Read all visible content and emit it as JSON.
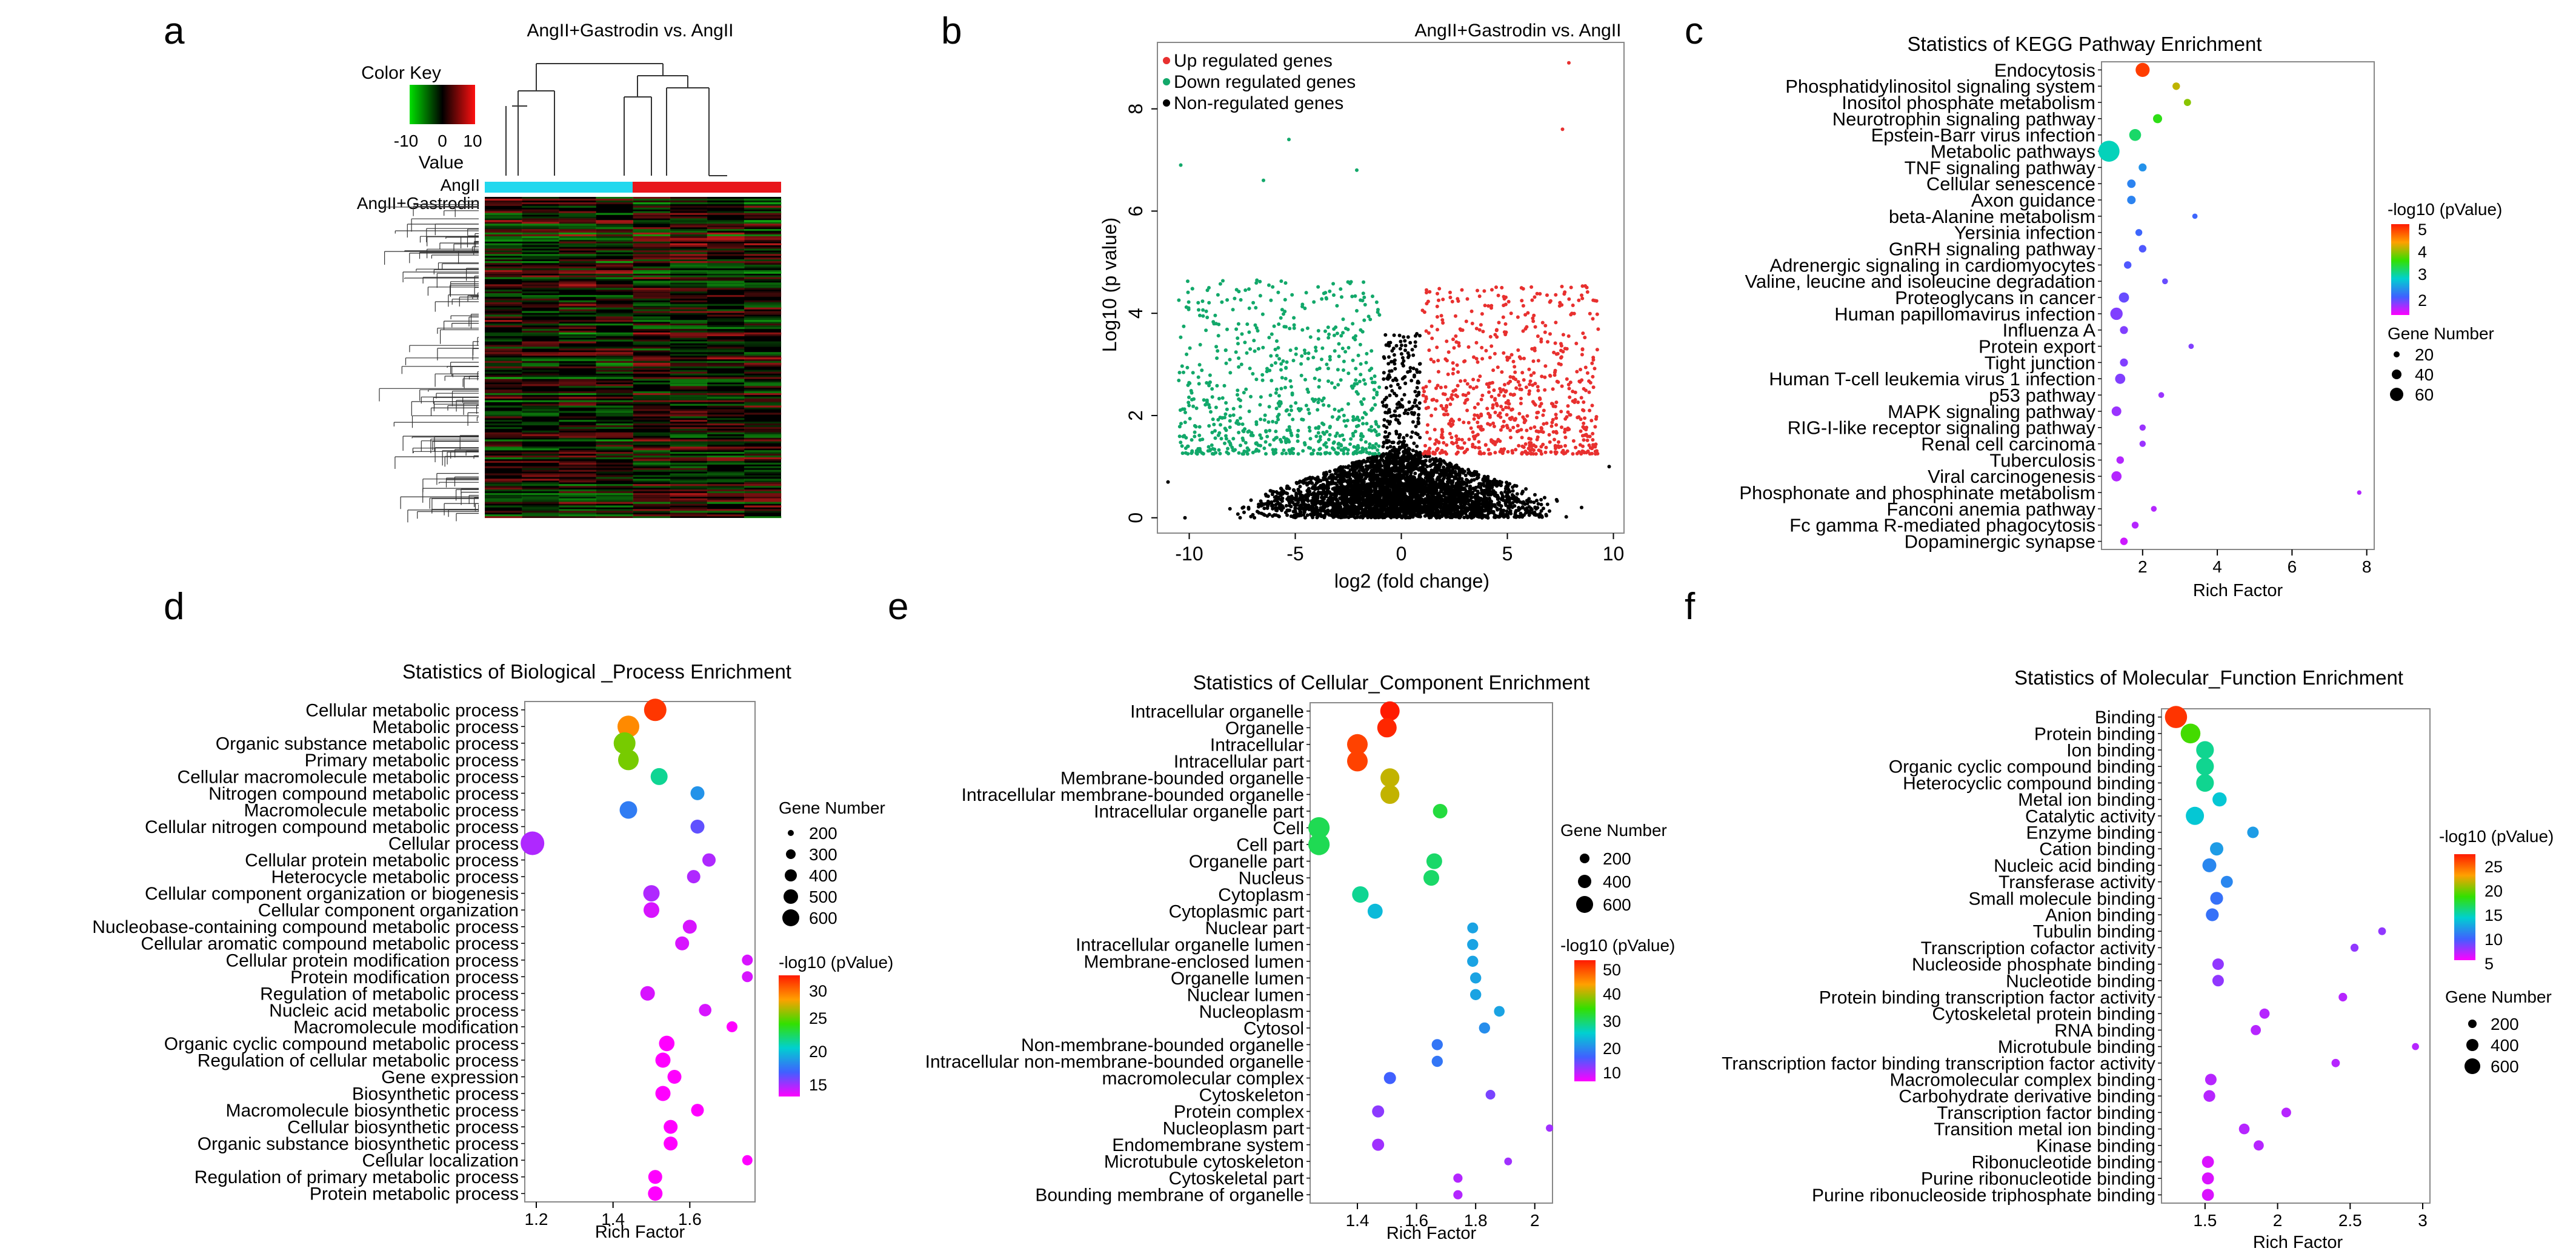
{
  "panels": {
    "a": "a",
    "b": "b",
    "c": "c",
    "d": "d",
    "e": "e",
    "f": "f"
  },
  "heatmap": {
    "title": "AngII+Gastrodin vs. AngII",
    "color_key": "Color Key",
    "value_label": "Value",
    "key_ticks": [
      "-10",
      "0",
      "10"
    ],
    "group1": "AngII",
    "group2": "AngII+Gastrodin",
    "group1_color": "#22d8ee",
    "group2_color": "#e8161b"
  },
  "scale_labels": {
    "pvalue": "-log10 (pValue)",
    "pvalue_kegg": "-log10 (pValue)",
    "gene_number": "Gene Number"
  },
  "chart_data": [
    {
      "panel": "b",
      "type": "scatter",
      "title": "AngII+Gastrodin vs. AngII",
      "xlabel": "log2 (fold change)",
      "ylabel": "Log10 (p value)",
      "xlim": [
        -11.5,
        10.5
      ],
      "ylim": [
        -0.3,
        9.3
      ],
      "xticks": [
        -10,
        -5,
        0,
        5,
        10
      ],
      "yticks": [
        0,
        2,
        4,
        6,
        8
      ],
      "legend": [
        "Up regulated genes",
        "Down regulated genes",
        "Non-regulated genes"
      ],
      "colors": {
        "up": "#e8302f",
        "down": "#12a86a",
        "non": "#000000"
      },
      "outliers": [
        {
          "x": 7.9,
          "y": 8.9,
          "g": "up"
        },
        {
          "x": 7.6,
          "y": 7.6,
          "g": "up"
        },
        {
          "x": -10.4,
          "y": 6.9,
          "g": "down"
        },
        {
          "x": -5.3,
          "y": 7.4,
          "g": "down"
        },
        {
          "x": -2.1,
          "y": 6.8,
          "g": "down"
        },
        {
          "x": -6.5,
          "y": 6.6,
          "g": "down"
        },
        {
          "x": -11,
          "y": 0.7,
          "g": "non"
        },
        {
          "x": -10.2,
          "y": 0,
          "g": "non"
        },
        {
          "x": 9.8,
          "y": 1,
          "g": "non"
        },
        {
          "x": 8.5,
          "y": 0.2,
          "g": "non"
        }
      ]
    },
    {
      "panel": "c",
      "type": "scatter",
      "title": "Statistics of KEGG Pathway Enrichment",
      "xlabel": "Rich Factor",
      "xlim": [
        0.9,
        8.2
      ],
      "xticks": [
        2,
        4,
        6,
        8
      ],
      "color_legend": [
        "5",
        "4",
        "3",
        "2"
      ],
      "size_legend": [
        "20",
        "40",
        "60"
      ],
      "categories": [
        "Endocytosis",
        "Phosphatidylinositol signaling system",
        "Inositol phosphate metabolism",
        "Neurotrophin signaling pathway",
        "Epstein-Barr virus infection",
        "Metabolic pathways",
        "TNF signaling pathway",
        "Cellular senescence",
        "Axon guidance",
        "beta-Alanine metabolism",
        "Yersinia infection",
        "GnRH signaling pathway",
        "Adrenergic signaling in cardiomyocytes",
        "Valine, leucine and isoleucine degradation",
        "Proteoglycans in cancer",
        "Human papillomavirus infection",
        "Influenza A",
        "Protein export",
        "Tight junction",
        "Human T-cell leukemia virus 1 infection",
        "p53 pathway",
        "MAPK signaling pathway",
        "RIG-I-like receptor signaling pathway",
        "Renal cell carcinoma",
        "Tuberculosis",
        "Viral carcinogenesis",
        "Phosphonate and phosphinate metabolism",
        "Fanconi anemia pathway",
        "Fc gamma R-mediated phagocytosis",
        "Dopaminergic synapse"
      ],
      "x": [
        2.0,
        2.9,
        3.2,
        2.4,
        1.8,
        1.1,
        2.0,
        1.7,
        1.7,
        3.4,
        1.9,
        2.0,
        1.6,
        2.6,
        1.5,
        1.3,
        1.5,
        3.3,
        1.5,
        1.4,
        2.5,
        1.3,
        2.0,
        2.0,
        1.4,
        1.3,
        7.8,
        2.3,
        1.8,
        1.5
      ],
      "values": [
        5.2,
        4.4,
        4.2,
        3.8,
        3.5,
        3.2,
        2.7,
        2.6,
        2.6,
        2.4,
        2.4,
        2.3,
        2.3,
        2.2,
        2.2,
        2.1,
        2.1,
        2.1,
        2.1,
        2.1,
        2.0,
        2.0,
        2.0,
        2.0,
        1.9,
        1.9,
        1.9,
        1.9,
        1.9,
        1.8
      ],
      "gene_number": [
        48,
        18,
        16,
        25,
        38,
        80,
        20,
        22,
        22,
        8,
        15,
        18,
        18,
        10,
        30,
        40,
        20,
        8,
        20,
        30,
        10,
        28,
        12,
        12,
        18,
        30,
        4,
        10,
        15,
        18
      ]
    },
    {
      "panel": "d",
      "type": "scatter",
      "title": "Statistics of Biological _Process Enrichment",
      "xlabel": "Rich Factor",
      "xlim": [
        1.17,
        1.77
      ],
      "xticks": [
        1.2,
        1.4,
        1.6
      ],
      "color_legend": [
        "30",
        "25",
        "20",
        "15"
      ],
      "size_legend": [
        "200",
        "300",
        "400",
        "500",
        "600"
      ],
      "categories": [
        "Cellular metabolic process",
        "Metabolic process",
        "Organic substance metabolic process",
        "Primary metabolic process",
        "Cellular macromolecule metabolic process",
        "Nitrogen compound metabolic process",
        "Macromolecule metabolic process",
        "Cellular nitrogen compound metabolic process",
        "Cellular process",
        "Cellular protein metabolic process",
        "Heterocycle metabolic process",
        "Cellular component organization or biogenesis",
        "Cellular component organization",
        "Nucleobase-containing compound metabolic process",
        "Cellular aromatic compound metabolic process",
        "Cellular protein modification process",
        "Protein modification process",
        "Regulation of metabolic process",
        "Nucleic acid metabolic process",
        "Macromolecule modification",
        "Organic cyclic compound metabolic process",
        "Regulation of cellular metabolic process",
        "Gene expression",
        "Biosynthetic process",
        "Macromolecule biosynthetic process",
        "Cellular biosynthetic process",
        "Organic substance biosynthetic process",
        "Cellular localization",
        "Regulation of primary metabolic process",
        "Protein metabolic process"
      ],
      "x": [
        1.51,
        1.44,
        1.43,
        1.44,
        1.52,
        1.62,
        1.44,
        1.62,
        1.19,
        1.65,
        1.61,
        1.5,
        1.5,
        1.6,
        1.58,
        1.75,
        1.75,
        1.49,
        1.64,
        1.71,
        1.54,
        1.53,
        1.56,
        1.53,
        1.62,
        1.55,
        1.55,
        1.75,
        1.51,
        1.51
      ],
      "values": [
        34,
        31,
        27,
        27,
        22,
        18,
        17,
        15,
        13,
        13,
        13,
        13,
        12,
        12,
        12,
        12,
        12,
        12,
        12,
        11,
        11,
        11,
        11,
        11,
        11,
        11,
        11,
        11,
        11,
        11
      ],
      "gene_number": [
        580,
        560,
        560,
        520,
        400,
        300,
        420,
        300,
        620,
        280,
        280,
        380,
        360,
        300,
        300,
        200,
        200,
        320,
        250,
        200,
        350,
        340,
        300,
        340,
        260,
        300,
        300,
        180,
        300,
        320
      ]
    },
    {
      "panel": "e",
      "type": "scatter",
      "title": "Statistics of Cellular_Component Enrichment",
      "xlabel": "Rich Factor",
      "xlim": [
        1.24,
        2.06
      ],
      "xticks": [
        1.4,
        1.6,
        1.8,
        2.0
      ],
      "color_legend": [
        "50",
        "40",
        "30",
        "20",
        "10"
      ],
      "size_legend": [
        "200",
        "400",
        "600"
      ],
      "categories": [
        "Intracellular organelle",
        "Organelle",
        "Intracellular",
        "Intracellular part",
        "Membrane-bounded organelle",
        "Intracellular membrane-bounded organelle",
        "Intracellular organelle part",
        "Cell",
        "Cell part",
        "Organelle part",
        "Nucleus",
        "Cytoplasm",
        "Cytoplasmic part",
        "Nuclear part",
        "Intracellular organelle lumen",
        "Membrane-enclosed lumen",
        "Organelle lumen",
        "Nuclear lumen",
        "Nucleoplasm",
        "Cytosol",
        "Non-membrane-bounded organelle",
        "Intracellular non-membrane-bounded organelle",
        "macromolecular complex",
        "Cytoskeleton",
        "Protein complex",
        "Nucleoplasm part",
        "Endomembrane system",
        "Microtubule cytoskeleton",
        "Cytoskeletal part",
        "Bounding membrane of organelle"
      ],
      "x": [
        1.51,
        1.5,
        1.4,
        1.4,
        1.51,
        1.51,
        1.68,
        1.27,
        1.27,
        1.66,
        1.65,
        1.41,
        1.46,
        1.79,
        1.79,
        1.79,
        1.8,
        1.8,
        1.88,
        1.83,
        1.67,
        1.67,
        1.51,
        1.85,
        1.47,
        2.05,
        1.47,
        1.91,
        1.74,
        1.74
      ],
      "values": [
        58,
        57,
        55,
        55,
        45,
        45,
        35,
        34,
        34,
        33,
        33,
        31,
        26,
        24,
        24,
        24,
        24,
        24,
        24,
        22,
        20,
        20,
        18,
        15,
        14,
        13,
        13,
        13,
        12,
        12
      ],
      "gene_number": [
        600,
        600,
        650,
        650,
        580,
        580,
        400,
        680,
        680,
        450,
        450,
        480,
        420,
        250,
        260,
        260,
        260,
        260,
        240,
        260,
        260,
        260,
        300,
        200,
        300,
        100,
        300,
        120,
        180,
        180
      ]
    },
    {
      "panel": "f",
      "type": "scatter",
      "title": "Statistics of Molecular_Function Enrichment",
      "xlabel": "Rich Factor",
      "xlim": [
        1.2,
        3.05
      ],
      "xticks": [
        1.5,
        2.0,
        2.5,
        3.0
      ],
      "color_legend": [
        "25",
        "20",
        "15",
        "10",
        "5"
      ],
      "size_legend": [
        "200",
        "400",
        "600"
      ],
      "categories": [
        "Binding",
        "Protein binding",
        "Ion binding",
        "Organic cyclic compound binding",
        "Heterocyclic compound binding",
        "Metal ion binding",
        "Catalytic activity",
        "Enzyme binding",
        "Cation binding",
        "Nucleic acid binding",
        "Transferase activity",
        "Small molecule binding",
        "Anion binding",
        "Tubulin binding",
        "Transcription cofactor activity",
        "Nucleoside phosphate binding",
        "Nucleotide binding",
        "Protein binding transcription factor activity",
        "Cytoskeletal protein binding",
        "RNA binding",
        "Microtubule binding",
        "Transcription factor binding transcription factor activity",
        "Macromolecular complex binding",
        "Carbohydrate derivative binding",
        "Transcription factor binding",
        "Transition metal ion binding",
        "Kinase binding",
        "Ribonucleotide binding",
        "Purine ribonucleotide binding",
        "Purine ribonucleoside triphosphate binding"
      ],
      "x": [
        1.3,
        1.4,
        1.5,
        1.5,
        1.5,
        1.6,
        1.43,
        1.83,
        1.58,
        1.53,
        1.65,
        1.58,
        1.55,
        2.72,
        2.53,
        1.59,
        1.59,
        2.45,
        1.91,
        1.85,
        2.95,
        2.4,
        1.54,
        1.53,
        2.06,
        1.77,
        1.87,
        1.52,
        1.52,
        1.52
      ],
      "values": [
        28,
        19,
        15,
        15,
        15,
        13,
        13,
        11,
        11,
        10,
        10,
        9,
        9,
        6,
        6,
        6,
        6,
        5,
        5,
        5,
        5,
        5,
        5,
        5,
        5,
        5,
        5,
        4,
        4,
        4
      ],
      "gene_number": [
        650,
        560,
        480,
        480,
        480,
        350,
        500,
        250,
        320,
        340,
        270,
        300,
        300,
        110,
        120,
        250,
        250,
        140,
        200,
        200,
        80,
        130,
        250,
        260,
        180,
        220,
        200,
        270,
        270,
        270
      ]
    }
  ]
}
